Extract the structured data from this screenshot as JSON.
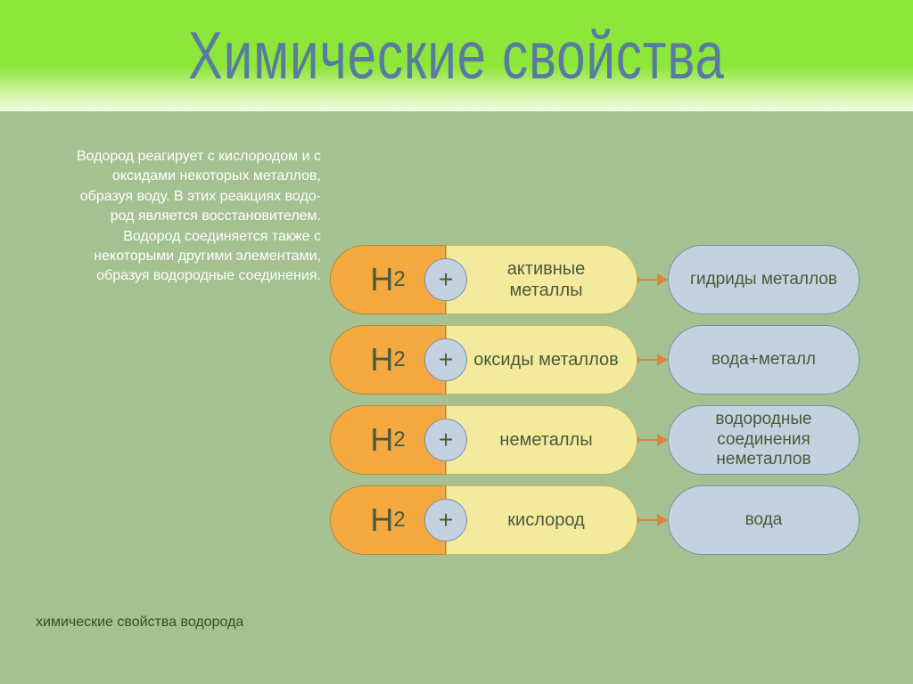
{
  "title": "Химические свойства",
  "description": "Водород реагирует с кислородом и с оксидами некоторых металлов, образуя воду. В этих реакциях водо­род является восстановителем. Водород соединяется также с некоторыми другими элемен­тами, образуя водородные соединения.",
  "caption": "химические свойства водорода",
  "colors": {
    "header_gradient_top": "#8de63a",
    "content_bg": "#a5c191",
    "title_color": "#5a7ba0",
    "desc_color": "#ffffff",
    "h2_pill_bg": "#f4a940",
    "plus_bg": "#c4d2e0",
    "middle_bg": "#f4ea9e",
    "result_bg": "#c4d2e0",
    "connector_color": "#d68840",
    "text_color": "#4a5a3a"
  },
  "reactant_symbol": "H",
  "reactant_subscript": "2",
  "plus_symbol": "+",
  "rows": [
    {
      "middle": "активные металлы",
      "result": "гидриды металлов"
    },
    {
      "middle": "оксиды металлов",
      "result": "вода+металл"
    },
    {
      "middle": "неметаллы",
      "result": "водородные соединения неметаллов"
    },
    {
      "middle": "кислород",
      "result": "вода"
    }
  ]
}
